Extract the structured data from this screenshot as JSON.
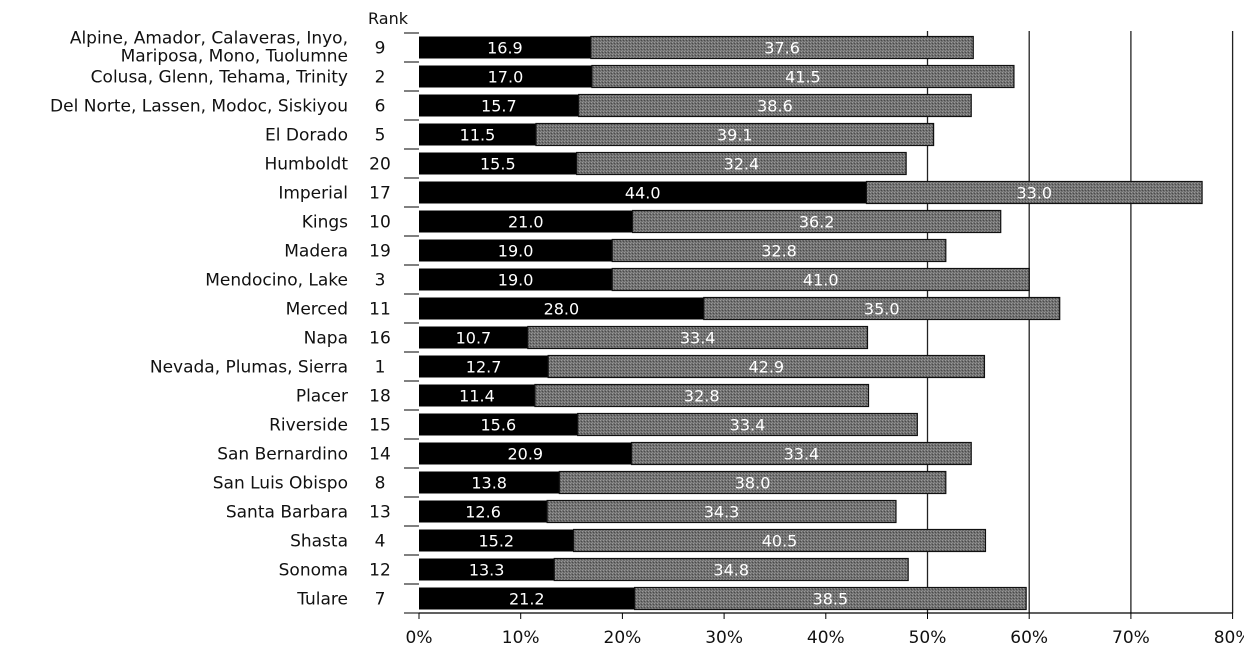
{
  "chart_data": {
    "type": "bar",
    "orientation": "horizontal",
    "stacked": true,
    "rank_header": "Rank",
    "categories": [
      [
        "Alpine, Amador, Calaveras, Inyo,",
        "Mariposa, Mono, Tuolumne"
      ],
      [
        "Colusa, Glenn, Tehama, Trinity"
      ],
      [
        "Del Norte, Lassen, Modoc, Siskiyou"
      ],
      [
        "El Dorado"
      ],
      [
        "Humboldt"
      ],
      [
        "Imperial"
      ],
      [
        "Kings"
      ],
      [
        "Madera"
      ],
      [
        "Mendocino, Lake"
      ],
      [
        "Merced"
      ],
      [
        "Napa"
      ],
      [
        "Nevada, Plumas, Sierra"
      ],
      [
        "Placer"
      ],
      [
        "Riverside"
      ],
      [
        "San Bernardino"
      ],
      [
        "San Luis Obispo"
      ],
      [
        "Santa Barbara"
      ],
      [
        "Shasta"
      ],
      [
        "Sonoma"
      ],
      [
        "Tulare"
      ]
    ],
    "ranks": [
      "9",
      "2",
      "6",
      "5",
      "20",
      "17",
      "10",
      "19",
      "3",
      "11",
      "16",
      "1",
      "18",
      "15",
      "14",
      "8",
      "13",
      "4",
      "12",
      "7"
    ],
    "series": [
      {
        "color": "#000000",
        "values": [
          16.9,
          17.0,
          15.7,
          11.5,
          15.5,
          44.0,
          21.0,
          19.0,
          19.0,
          28.0,
          10.7,
          12.7,
          11.4,
          15.6,
          20.9,
          13.8,
          12.6,
          15.2,
          13.3,
          21.2
        ],
        "labels": [
          "16.9",
          "17.0",
          "15.7",
          "11.5",
          "15.5",
          "44.0",
          "21.0",
          "19.0",
          "19.0",
          "28.0",
          "10.7",
          "12.7",
          "11.4",
          "15.6",
          "20.9",
          "13.8",
          "12.6",
          "15.2",
          "13.3",
          "21.2"
        ]
      },
      {
        "color": "#6e6e6e",
        "values": [
          37.6,
          41.5,
          38.6,
          39.1,
          32.4,
          33.0,
          36.2,
          32.8,
          41.0,
          35.0,
          33.4,
          42.9,
          32.8,
          33.4,
          33.4,
          38.0,
          34.3,
          40.5,
          34.8,
          38.5
        ],
        "labels": [
          "37.6",
          "41.5",
          "38.6",
          "39.1",
          "32.4",
          "33.0",
          "36.2",
          "32.8",
          "41.0",
          "35.0",
          "33.4",
          "42.9",
          "32.8",
          "33.4",
          "33.4",
          "38.0",
          "34.3",
          "40.5",
          "34.8",
          "38.5"
        ]
      }
    ],
    "xlim": [
      0,
      80
    ],
    "xticks": [
      0,
      10,
      20,
      30,
      40,
      50,
      60,
      70,
      80
    ],
    "xtick_labels": [
      "0%",
      "10%",
      "20%",
      "30%",
      "40%",
      "50%",
      "60%",
      "70%",
      "80%"
    ],
    "xlabel": "",
    "ylabel": "",
    "title": "",
    "grid": "vertical lines at 50%, 60%, 70%, 80%",
    "legend": "none"
  }
}
